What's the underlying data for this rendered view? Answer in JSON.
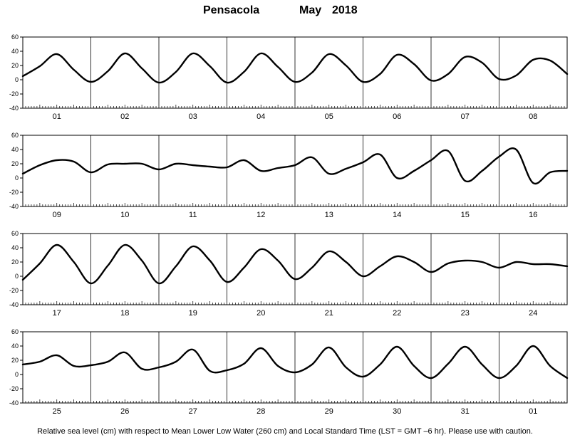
{
  "chart_data": {
    "type": "line",
    "title": {
      "station": "Pensacola",
      "month": "May",
      "year": "2018"
    },
    "ylim": [
      -40,
      60
    ],
    "y_ticks": [
      60,
      40,
      20,
      0,
      -20,
      -40
    ],
    "grid": "vertical day separators",
    "panels": [
      {
        "days": [
          "01",
          "02",
          "03",
          "04",
          "05",
          "06",
          "07",
          "08"
        ],
        "hours": [
          0,
          6,
          12,
          18,
          24,
          30,
          36,
          42,
          48,
          54,
          60,
          66,
          72,
          78,
          84,
          90,
          96,
          102,
          108,
          114,
          120,
          126,
          132,
          138,
          144,
          150,
          156,
          162,
          168,
          174,
          180,
          186,
          192
        ],
        "values": [
          5,
          19,
          36,
          14,
          -3,
          12,
          37,
          16,
          -4,
          11,
          37,
          19,
          -4,
          11,
          37,
          18,
          -3,
          10,
          36,
          20,
          -3,
          8,
          35,
          22,
          -1,
          8,
          32,
          24,
          1,
          6,
          28,
          27,
          8
        ]
      },
      {
        "days": [
          "09",
          "10",
          "11",
          "12",
          "13",
          "14",
          "15",
          "16"
        ],
        "hours": [
          0,
          6,
          12,
          18,
          24,
          30,
          36,
          42,
          48,
          54,
          60,
          66,
          72,
          78,
          84,
          90,
          96,
          102,
          108,
          114,
          120,
          126,
          132,
          138,
          144,
          150,
          156,
          162,
          168,
          174,
          180,
          186,
          192
        ],
        "values": [
          6,
          18,
          25,
          23,
          8,
          19,
          20,
          20,
          12,
          20,
          18,
          16,
          15,
          25,
          10,
          14,
          18,
          29,
          6,
          13,
          22,
          33,
          0,
          10,
          25,
          38,
          -4,
          10,
          30,
          40,
          -7,
          8,
          10
        ]
      },
      {
        "days": [
          "17",
          "18",
          "19",
          "20",
          "21",
          "22",
          "23",
          "24"
        ],
        "hours": [
          0,
          6,
          12,
          18,
          24,
          30,
          36,
          42,
          48,
          54,
          60,
          66,
          72,
          78,
          84,
          90,
          96,
          102,
          108,
          114,
          120,
          126,
          132,
          138,
          144,
          150,
          156,
          162,
          168,
          174,
          180,
          186,
          192
        ],
        "values": [
          -5,
          18,
          44,
          20,
          -10,
          15,
          44,
          22,
          -10,
          14,
          42,
          22,
          -8,
          12,
          38,
          22,
          -4,
          12,
          35,
          20,
          0,
          14,
          28,
          20,
          6,
          18,
          22,
          20,
          12,
          20,
          17,
          17,
          14
        ]
      },
      {
        "days": [
          "25",
          "26",
          "27",
          "28",
          "29",
          "30",
          "31",
          "01"
        ],
        "hours": [
          0,
          6,
          12,
          18,
          24,
          30,
          36,
          42,
          48,
          54,
          60,
          66,
          72,
          78,
          84,
          90,
          96,
          102,
          108,
          114,
          120,
          126,
          132,
          138,
          144,
          150,
          156,
          162,
          168,
          174,
          180,
          186,
          192
        ],
        "values": [
          14,
          18,
          27,
          12,
          13,
          18,
          31,
          8,
          10,
          18,
          35,
          5,
          6,
          15,
          37,
          12,
          3,
          14,
          38,
          10,
          -3,
          14,
          39,
          12,
          -5,
          15,
          39,
          14,
          -5,
          12,
          40,
          12,
          -5
        ]
      }
    ],
    "footnote": "Relative sea level (cm) with respect to Mean Lower Low Water (260 cm) and Local Standard Time (LST = GMT –6 hr). Please use with caution."
  }
}
